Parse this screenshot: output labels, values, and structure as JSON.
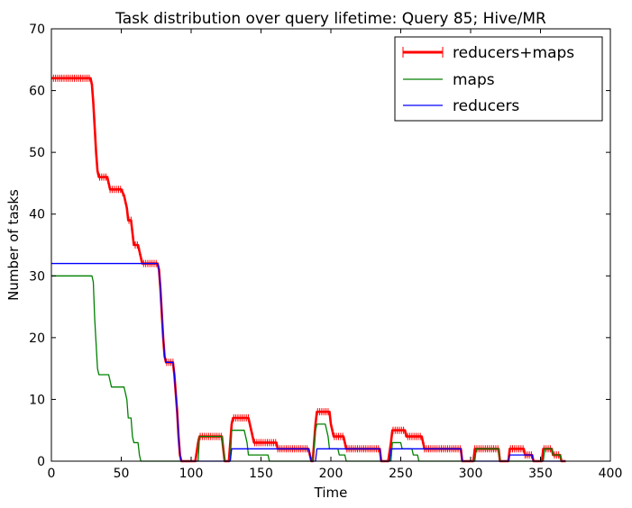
{
  "chart_data": {
    "type": "line",
    "title": "Task distribution over query lifetime: Query 85; Hive/MR",
    "xlabel": "Time",
    "ylabel": "Number of tasks",
    "xlim": [
      0,
      400
    ],
    "ylim": [
      0,
      70
    ],
    "xticks": [
      0,
      50,
      100,
      150,
      200,
      250,
      300,
      350,
      400
    ],
    "yticks": [
      0,
      10,
      20,
      30,
      40,
      50,
      60,
      70
    ],
    "grid": false,
    "legend_position": "top-right",
    "series": [
      {
        "name": "reducers+maps",
        "color": "#ff0000",
        "marker": "+",
        "points": [
          [
            0,
            62
          ],
          [
            28,
            62
          ],
          [
            29,
            61
          ],
          [
            30,
            58
          ],
          [
            31,
            54
          ],
          [
            32,
            50
          ],
          [
            33,
            47
          ],
          [
            34,
            46
          ],
          [
            40,
            46
          ],
          [
            41,
            45
          ],
          [
            42,
            44
          ],
          [
            50,
            44
          ],
          [
            52,
            43
          ],
          [
            53,
            42
          ],
          [
            54,
            41
          ],
          [
            55,
            39
          ],
          [
            57,
            39
          ],
          [
            58,
            37
          ],
          [
            59,
            35
          ],
          [
            62,
            35
          ],
          [
            63,
            34
          ],
          [
            64,
            33
          ],
          [
            65,
            32
          ],
          [
            76,
            32
          ],
          [
            77,
            31
          ],
          [
            78,
            28
          ],
          [
            79,
            24
          ],
          [
            80,
            20
          ],
          [
            81,
            17
          ],
          [
            82,
            16
          ],
          [
            87,
            16
          ],
          [
            88,
            14
          ],
          [
            89,
            11
          ],
          [
            90,
            8
          ],
          [
            91,
            4
          ],
          [
            92,
            1
          ],
          [
            93,
            0
          ],
          [
            103,
            0
          ],
          [
            105,
            3
          ],
          [
            106,
            4
          ],
          [
            122,
            4
          ],
          [
            124,
            0
          ],
          [
            127,
            0
          ],
          [
            129,
            6
          ],
          [
            130,
            7
          ],
          [
            141,
            7
          ],
          [
            142,
            6
          ],
          [
            143,
            5
          ],
          [
            144,
            4
          ],
          [
            145,
            3
          ],
          [
            161,
            3
          ],
          [
            162,
            2
          ],
          [
            184,
            2
          ],
          [
            186,
            0
          ],
          [
            187,
            0
          ],
          [
            189,
            6
          ],
          [
            190,
            8
          ],
          [
            199,
            8
          ],
          [
            200,
            6
          ],
          [
            201,
            5
          ],
          [
            202,
            4
          ],
          [
            209,
            4
          ],
          [
            210,
            3
          ],
          [
            211,
            2
          ],
          [
            235,
            2
          ],
          [
            236,
            0
          ],
          [
            241,
            0
          ],
          [
            243,
            3
          ],
          [
            244,
            5
          ],
          [
            253,
            5
          ],
          [
            254,
            4
          ],
          [
            265,
            4
          ],
          [
            266,
            3
          ],
          [
            267,
            2
          ],
          [
            293,
            2
          ],
          [
            294,
            0
          ],
          [
            302,
            0
          ],
          [
            303,
            2
          ],
          [
            320,
            2
          ],
          [
            321,
            0
          ],
          [
            327,
            0
          ],
          [
            328,
            2
          ],
          [
            338,
            2
          ],
          [
            339,
            1
          ],
          [
            344,
            1
          ],
          [
            345,
            0
          ],
          [
            351,
            0
          ],
          [
            352,
            2
          ],
          [
            358,
            2
          ],
          [
            359,
            1
          ],
          [
            364,
            1
          ],
          [
            365,
            0
          ],
          [
            368,
            0
          ]
        ]
      },
      {
        "name": "maps",
        "color": "#008000",
        "marker": "",
        "points": [
          [
            0,
            30
          ],
          [
            29,
            30
          ],
          [
            30,
            29
          ],
          [
            31,
            23
          ],
          [
            32,
            19
          ],
          [
            33,
            15
          ],
          [
            34,
            14
          ],
          [
            41,
            14
          ],
          [
            42,
            13
          ],
          [
            43,
            12
          ],
          [
            52,
            12
          ],
          [
            53,
            11
          ],
          [
            54,
            10
          ],
          [
            55,
            7
          ],
          [
            57,
            7
          ],
          [
            58,
            4
          ],
          [
            59,
            3
          ],
          [
            62,
            3
          ],
          [
            63,
            1
          ],
          [
            64,
            0
          ],
          [
            65,
            0
          ],
          [
            105,
            0
          ],
          [
            106,
            4
          ],
          [
            122,
            4
          ],
          [
            124,
            0
          ],
          [
            128,
            0
          ],
          [
            129,
            5
          ],
          [
            138,
            5
          ],
          [
            139,
            4
          ],
          [
            140,
            3
          ],
          [
            141,
            1
          ],
          [
            155,
            1
          ],
          [
            156,
            0
          ],
          [
            187,
            0
          ],
          [
            189,
            5
          ],
          [
            190,
            6
          ],
          [
            196,
            6
          ],
          [
            197,
            5
          ],
          [
            198,
            4
          ],
          [
            199,
            2
          ],
          [
            205,
            2
          ],
          [
            206,
            1
          ],
          [
            210,
            1
          ],
          [
            211,
            0
          ],
          [
            243,
            0
          ],
          [
            244,
            3
          ],
          [
            250,
            3
          ],
          [
            251,
            2
          ],
          [
            258,
            2
          ],
          [
            259,
            1
          ],
          [
            262,
            1
          ],
          [
            263,
            0
          ],
          [
            303,
            0
          ],
          [
            304,
            2
          ],
          [
            320,
            2
          ],
          [
            321,
            0
          ],
          [
            352,
            0
          ],
          [
            353,
            2
          ],
          [
            358,
            2
          ],
          [
            359,
            1
          ],
          [
            364,
            1
          ],
          [
            365,
            0
          ],
          [
            368,
            0
          ]
        ]
      },
      {
        "name": "reducers",
        "color": "#0000ff",
        "marker": "",
        "points": [
          [
            0,
            32
          ],
          [
            76,
            32
          ],
          [
            77,
            31
          ],
          [
            78,
            28
          ],
          [
            79,
            24
          ],
          [
            80,
            20
          ],
          [
            81,
            17
          ],
          [
            82,
            16
          ],
          [
            87,
            16
          ],
          [
            88,
            14
          ],
          [
            89,
            11
          ],
          [
            90,
            8
          ],
          [
            91,
            4
          ],
          [
            92,
            1
          ],
          [
            93,
            0
          ],
          [
            128,
            0
          ],
          [
            129,
            2
          ],
          [
            142,
            2
          ],
          [
            143,
            2
          ],
          [
            162,
            2
          ],
          [
            184,
            2
          ],
          [
            186,
            0
          ],
          [
            189,
            0
          ],
          [
            190,
            2
          ],
          [
            235,
            2
          ],
          [
            236,
            0
          ],
          [
            242,
            0
          ],
          [
            243,
            2
          ],
          [
            265,
            2
          ],
          [
            266,
            2
          ],
          [
            293,
            2
          ],
          [
            294,
            0
          ],
          [
            327,
            0
          ],
          [
            328,
            1
          ],
          [
            344,
            1
          ],
          [
            345,
            0
          ],
          [
            368,
            0
          ]
        ]
      }
    ]
  }
}
